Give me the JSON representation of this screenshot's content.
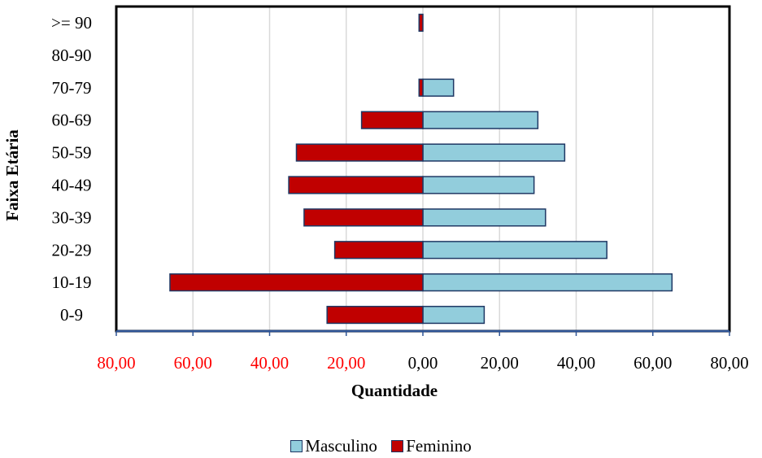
{
  "chart_data": {
    "type": "bar",
    "orientation": "horizontal",
    "subtype": "population-pyramid",
    "title": "",
    "xlabel": "Quantidade",
    "ylabel": "Faixa Etária",
    "categories": [
      ">= 90",
      "80-90",
      "70-79",
      "60-69",
      "50-59",
      "40-49",
      "30-39",
      "20-29",
      "10-19",
      "0-9"
    ],
    "xlim": [
      -80,
      80
    ],
    "xticks": [
      -80,
      -60,
      -40,
      -20,
      0,
      20,
      40,
      60,
      80
    ],
    "xtick_labels": [
      "80,00",
      "60,00",
      "40,00",
      "20,00",
      "0,00",
      "20,00",
      "40,00",
      "60,00",
      "80,00"
    ],
    "xtick_colors": [
      "#ff0000",
      "#ff0000",
      "#ff0000",
      "#ff0000",
      "#000000",
      "#000000",
      "#000000",
      "#000000",
      "#000000"
    ],
    "grid": true,
    "legend_position": "bottom",
    "series": [
      {
        "name": "Masculino",
        "color": "#92cddc",
        "values": [
          0,
          0,
          8,
          30,
          37,
          29,
          32,
          48,
          65,
          16
        ]
      },
      {
        "name": "Feminino",
        "color": "#c00000",
        "values": [
          1,
          0,
          1,
          16,
          33,
          35,
          31,
          23,
          66,
          25
        ]
      }
    ]
  }
}
